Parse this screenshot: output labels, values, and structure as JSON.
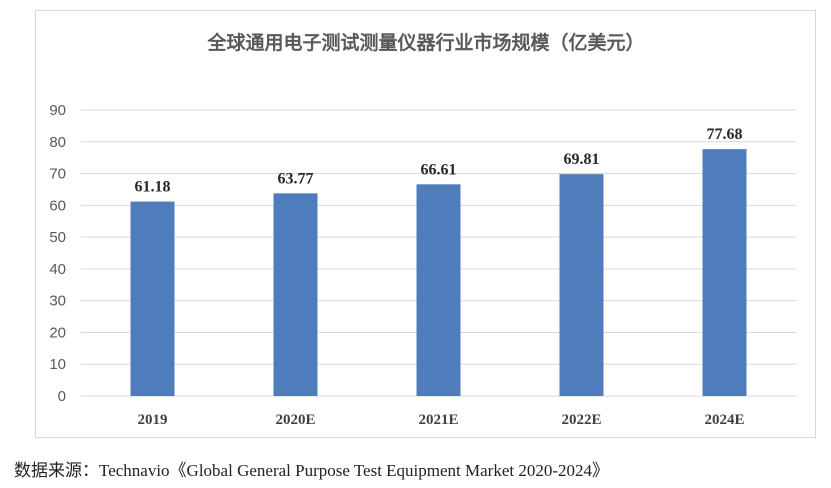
{
  "chart_data": {
    "type": "bar",
    "title": "全球通用电子测试测量仪器行业市场规模（亿美元）",
    "categories": [
      "2019",
      "2020E",
      "2021E",
      "2022E",
      "2024E"
    ],
    "values": [
      61.18,
      63.77,
      66.61,
      69.81,
      77.68
    ],
    "data_labels": [
      "61.18",
      "63.77",
      "66.61",
      "69.81",
      "77.68"
    ],
    "ylim": [
      0,
      90
    ],
    "yticks": [
      0,
      10,
      20,
      30,
      40,
      50,
      60,
      70,
      80,
      90
    ],
    "grid": true,
    "legend": "none",
    "colors": {
      "bar": "#4f7cba",
      "grid": "#d9d9d9",
      "text": "#595959"
    }
  },
  "source": "数据来源：Technavio《Global General Purpose Test Equipment Market 2020-2024》"
}
